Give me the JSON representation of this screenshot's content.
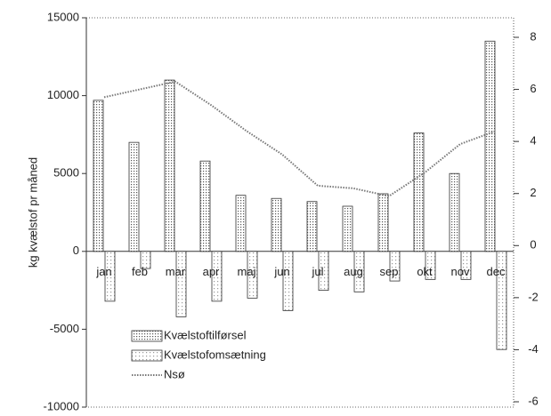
{
  "chart_data": {
    "type": "bar",
    "ylabel": "kg kvælstof pr måned",
    "categories": [
      "jan",
      "feb",
      "mar",
      "apr",
      "maj",
      "jun",
      "jul",
      "aug",
      "sep",
      "okt",
      "nov",
      "dec"
    ],
    "ylim": [
      -10000,
      15000
    ],
    "yticks": [
      -10000,
      -5000,
      0,
      5000,
      10000,
      15000
    ],
    "y2lim": [
      -6,
      8
    ],
    "y2ticks": [
      -6,
      -4,
      -2,
      0,
      2,
      4,
      6,
      8
    ],
    "series": [
      {
        "name": "Kvælstoftilførsel",
        "color": "#555555",
        "values": [
          9700,
          7000,
          11000,
          5800,
          3600,
          3400,
          3200,
          2900,
          3700,
          7600,
          5000,
          13500
        ]
      },
      {
        "name": "Kvælstofomsætning",
        "color": "#999999",
        "values": [
          -3200,
          -1100,
          -4200,
          -3200,
          -3000,
          -3800,
          -2500,
          -2600,
          -1900,
          -1800,
          -1800,
          -6300
        ]
      },
      {
        "name": "Nsø",
        "type": "line",
        "axis": "y2",
        "color": "#777777",
        "values": [
          5.7,
          6.0,
          6.3,
          5.4,
          4.4,
          3.5,
          2.3,
          2.2,
          1.9,
          2.8,
          3.9,
          4.4
        ]
      }
    ]
  }
}
